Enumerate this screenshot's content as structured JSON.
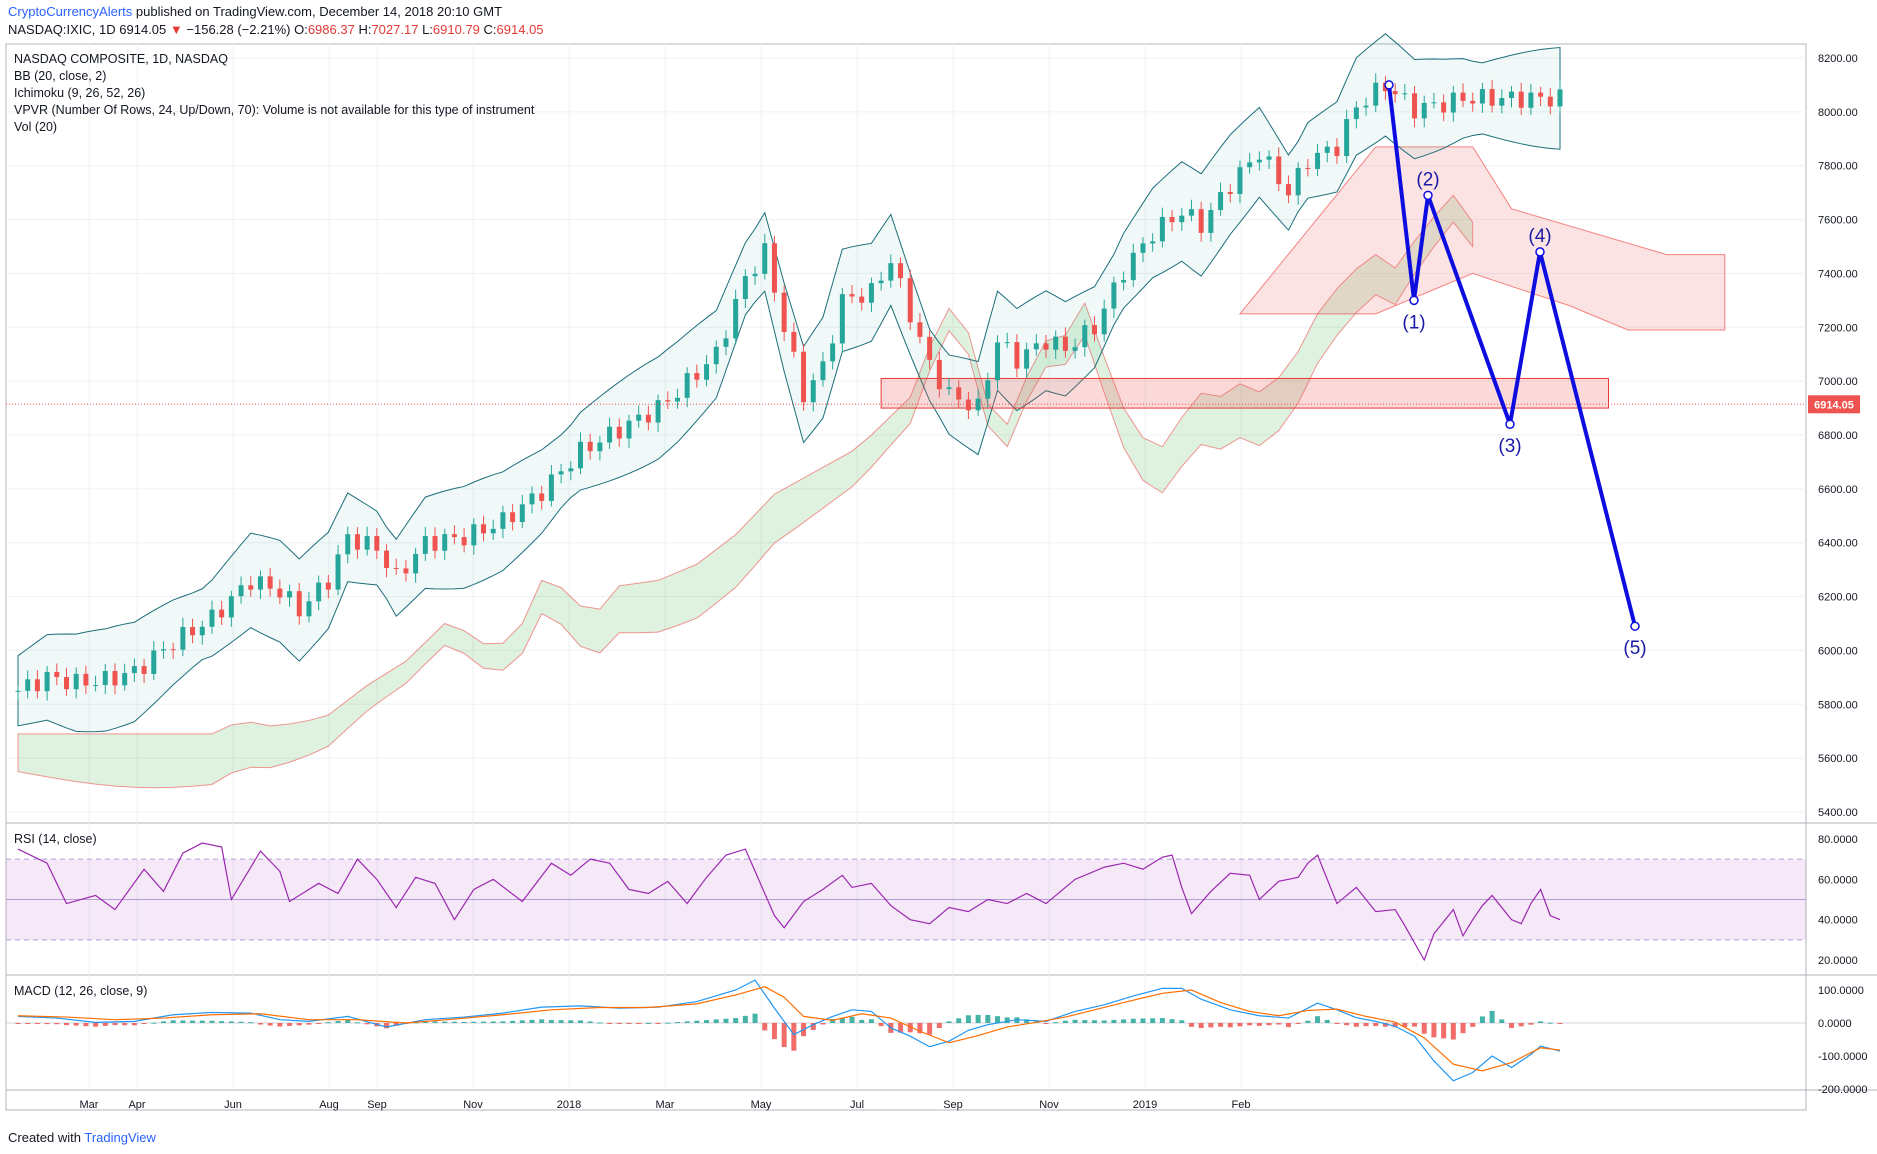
{
  "header": {
    "publisher": "CryptoCurrencyAlerts",
    "published_text": "published on TradingView.com, December 14, 2018 20:10 GMT",
    "symbol": "NASDAQ:IXIC, 1D",
    "last": "6914.05",
    "change_arrow": "▼",
    "change": "−156.28 (−2.21%)",
    "open_label": "O:",
    "open": "6986.37",
    "high_label": "H:",
    "high": "7027.17",
    "low_label": "L:",
    "low": "6910.79",
    "close_label": "C:",
    "close": "6914.05"
  },
  "legend": [
    "NASDAQ COMPOSITE, 1D, NASDAQ",
    "BB (20, close, 2)",
    "Ichimoku (9, 26, 52, 26)",
    "VPVR (Number Of Rows, 24, Up/Down, 70): Volume is not available for this type of instrument",
    "Vol (20)"
  ],
  "footer": {
    "created_with": "Created with",
    "brand": "TradingView"
  },
  "colors": {
    "up": "#26a69a",
    "down": "#ef5350",
    "wave": "#0d0de0",
    "rsi": "#9c27b0",
    "macd": "#2196f3",
    "signal": "#ff6d00",
    "price_tag": "#ef5350"
  },
  "chart_data": [
    {
      "type": "candlestick",
      "title": "NASDAQ COMPOSITE, 1D, NASDAQ",
      "ylim": [
        5400,
        8200
      ],
      "yticks": [
        "5400.00",
        "5600.00",
        "5800.00",
        "6000.00",
        "6200.00",
        "6400.00",
        "6600.00",
        "6800.00",
        "7000.00",
        "7200.00",
        "7400.00",
        "7600.00",
        "7800.00",
        "8000.00",
        "8200.00"
      ],
      "x_ticks": [
        "Mar",
        "Apr",
        "Jun",
        "Aug",
        "Sep",
        "Nov",
        "2018",
        "Mar",
        "May",
        "Jul",
        "Sep",
        "Nov",
        "2019",
        "Feb"
      ],
      "last_price_label": "6914.05",
      "price_path": [
        [
          0,
          5850
        ],
        [
          3,
          5900
        ],
        [
          6,
          5880
        ],
        [
          9,
          5890
        ],
        [
          12,
          5920
        ],
        [
          16,
          6030
        ],
        [
          20,
          6120
        ],
        [
          24,
          6260
        ],
        [
          27,
          6220
        ],
        [
          29,
          6150
        ],
        [
          32,
          6260
        ],
        [
          34,
          6420
        ],
        [
          37,
          6380
        ],
        [
          39,
          6270
        ],
        [
          42,
          6400
        ],
        [
          46,
          6420
        ],
        [
          50,
          6480
        ],
        [
          54,
          6590
        ],
        [
          58,
          6740
        ],
        [
          62,
          6820
        ],
        [
          66,
          6900
        ],
        [
          68,
          6960
        ],
        [
          72,
          7100
        ],
        [
          75,
          7380
        ],
        [
          77,
          7480
        ],
        [
          79,
          7200
        ],
        [
          81,
          6950
        ],
        [
          83,
          7050
        ],
        [
          85,
          7300
        ],
        [
          88,
          7330
        ],
        [
          90,
          7450
        ],
        [
          92,
          7250
        ],
        [
          94,
          7060
        ],
        [
          96,
          6950
        ],
        [
          99,
          6900
        ],
        [
          101,
          7150
        ],
        [
          103,
          7080
        ],
        [
          106,
          7150
        ],
        [
          108,
          7120
        ],
        [
          111,
          7200
        ],
        [
          114,
          7410
        ],
        [
          117,
          7550
        ],
        [
          120,
          7630
        ],
        [
          122,
          7580
        ],
        [
          125,
          7730
        ],
        [
          128,
          7850
        ],
        [
          131,
          7700
        ],
        [
          133,
          7820
        ],
        [
          136,
          7870
        ],
        [
          138,
          8020
        ],
        [
          141,
          8100
        ],
        [
          144,
          8010
        ],
        [
          147,
          8030
        ],
        [
          149,
          8050
        ]
      ],
      "resistance_zone": [
        6900,
        7010
      ],
      "elliott_waves": [
        {
          "label": "(1)",
          "value": 7300
        },
        {
          "label": "(2)",
          "value": 7690
        },
        {
          "label": "(3)",
          "value": 6840
        },
        {
          "label": "(4)",
          "value": 7480
        },
        {
          "label": "(5)",
          "value": 6090
        }
      ],
      "wave_start": 8100
    },
    {
      "type": "line",
      "title": "RSI (14, close)",
      "ylim": [
        15,
        85
      ],
      "yticks": [
        "20.0000",
        "40.0000",
        "60.0000",
        "80.0000"
      ],
      "band": [
        30,
        70
      ],
      "path": [
        [
          0,
          75
        ],
        [
          3,
          68
        ],
        [
          5,
          48
        ],
        [
          8,
          52
        ],
        [
          10,
          45
        ],
        [
          13,
          65
        ],
        [
          15,
          54
        ],
        [
          17,
          73
        ],
        [
          19,
          78
        ],
        [
          21,
          76
        ],
        [
          22,
          50
        ],
        [
          25,
          74
        ],
        [
          27,
          64
        ],
        [
          28,
          49
        ],
        [
          31,
          58
        ],
        [
          33,
          53
        ],
        [
          35,
          70
        ],
        [
          37,
          60
        ],
        [
          39,
          46
        ],
        [
          41,
          61
        ],
        [
          43,
          58
        ],
        [
          45,
          40
        ],
        [
          47,
          55
        ],
        [
          49,
          60
        ],
        [
          52,
          49
        ],
        [
          55,
          68
        ],
        [
          57,
          62
        ],
        [
          59,
          70
        ],
        [
          61,
          68
        ],
        [
          63,
          55
        ],
        [
          65,
          53
        ],
        [
          67,
          59
        ],
        [
          69,
          48
        ],
        [
          71,
          61
        ],
        [
          73,
          72
        ],
        [
          75,
          75
        ],
        [
          76,
          64
        ],
        [
          78,
          42
        ],
        [
          79,
          36
        ],
        [
          81,
          49
        ],
        [
          83,
          55
        ],
        [
          85,
          62
        ],
        [
          86,
          56
        ],
        [
          88,
          58
        ],
        [
          90,
          47
        ],
        [
          92,
          40
        ],
        [
          94,
          38
        ],
        [
          96,
          46
        ],
        [
          98,
          44
        ],
        [
          100,
          50
        ],
        [
          102,
          48
        ],
        [
          104,
          53
        ],
        [
          106,
          48
        ],
        [
          109,
          60
        ],
        [
          112,
          66
        ],
        [
          114,
          68
        ],
        [
          116,
          65
        ],
        [
          118,
          71
        ],
        [
          119,
          72
        ],
        [
          120,
          56
        ],
        [
          121,
          43
        ],
        [
          123,
          54
        ],
        [
          125,
          63
        ],
        [
          127,
          62
        ],
        [
          128,
          50
        ],
        [
          130,
          59
        ],
        [
          132,
          61
        ],
        [
          133,
          68
        ],
        [
          134,
          72
        ],
        [
          136,
          48
        ],
        [
          138,
          56
        ],
        [
          140,
          44
        ],
        [
          142,
          45
        ],
        [
          143,
          37
        ],
        [
          145,
          20
        ],
        [
          146,
          33
        ],
        [
          148,
          45
        ],
        [
          149,
          32
        ],
        [
          150,
          40
        ],
        [
          151,
          47
        ],
        [
          152,
          52
        ],
        [
          154,
          40
        ],
        [
          155,
          38
        ],
        [
          156,
          48
        ],
        [
          157,
          55
        ],
        [
          158,
          42
        ],
        [
          159,
          40
        ]
      ]
    },
    {
      "type": "line",
      "title": "MACD (12, 26, close, 9)",
      "ylim": [
        -200,
        100
      ],
      "yticks": [
        "100.0000",
        "0.0000",
        "-100.0000",
        "-200.0000"
      ],
      "macd_path": [
        [
          0,
          20
        ],
        [
          4,
          15
        ],
        [
          8,
          2
        ],
        [
          12,
          5
        ],
        [
          16,
          25
        ],
        [
          20,
          32
        ],
        [
          24,
          30
        ],
        [
          27,
          10
        ],
        [
          30,
          5
        ],
        [
          34,
          20
        ],
        [
          38,
          -12
        ],
        [
          42,
          10
        ],
        [
          46,
          18
        ],
        [
          50,
          30
        ],
        [
          54,
          48
        ],
        [
          58,
          52
        ],
        [
          62,
          45
        ],
        [
          66,
          48
        ],
        [
          70,
          65
        ],
        [
          74,
          100
        ],
        [
          76,
          130
        ],
        [
          78,
          45
        ],
        [
          80,
          -35
        ],
        [
          82,
          -5
        ],
        [
          84,
          20
        ],
        [
          86,
          40
        ],
        [
          88,
          35
        ],
        [
          90,
          -15
        ],
        [
          92,
          -40
        ],
        [
          94,
          -72
        ],
        [
          96,
          -55
        ],
        [
          98,
          -22
        ],
        [
          100,
          -5
        ],
        [
          103,
          10
        ],
        [
          106,
          5
        ],
        [
          109,
          35
        ],
        [
          112,
          55
        ],
        [
          115,
          82
        ],
        [
          118,
          105
        ],
        [
          120,
          105
        ],
        [
          122,
          72
        ],
        [
          125,
          40
        ],
        [
          128,
          22
        ],
        [
          131,
          15
        ],
        [
          134,
          60
        ],
        [
          136,
          40
        ],
        [
          138,
          16
        ],
        [
          140,
          5
        ],
        [
          142,
          -10
        ],
        [
          144,
          -40
        ],
        [
          146,
          -115
        ],
        [
          148,
          -175
        ],
        [
          150,
          -150
        ],
        [
          152,
          -100
        ],
        [
          154,
          -135
        ],
        [
          156,
          -95
        ],
        [
          157,
          -70
        ],
        [
          159,
          -85
        ]
      ],
      "signal_path": [
        [
          0,
          22
        ],
        [
          5,
          18
        ],
        [
          10,
          10
        ],
        [
          15,
          15
        ],
        [
          20,
          25
        ],
        [
          25,
          28
        ],
        [
          30,
          10
        ],
        [
          35,
          10
        ],
        [
          40,
          0
        ],
        [
          45,
          12
        ],
        [
          50,
          25
        ],
        [
          55,
          40
        ],
        [
          60,
          47
        ],
        [
          65,
          47
        ],
        [
          70,
          58
        ],
        [
          74,
          85
        ],
        [
          77,
          110
        ],
        [
          79,
          78
        ],
        [
          81,
          20
        ],
        [
          84,
          8
        ],
        [
          87,
          28
        ],
        [
          90,
          15
        ],
        [
          93,
          -25
        ],
        [
          96,
          -60
        ],
        [
          99,
          -38
        ],
        [
          102,
          -12
        ],
        [
          105,
          2
        ],
        [
          108,
          18
        ],
        [
          111,
          40
        ],
        [
          114,
          62
        ],
        [
          118,
          90
        ],
        [
          121,
          100
        ],
        [
          124,
          62
        ],
        [
          127,
          35
        ],
        [
          130,
          22
        ],
        [
          133,
          38
        ],
        [
          136,
          42
        ],
        [
          139,
          20
        ],
        [
          142,
          3
        ],
        [
          145,
          -45
        ],
        [
          148,
          -125
        ],
        [
          151,
          -145
        ],
        [
          154,
          -120
        ],
        [
          156,
          -90
        ],
        [
          157,
          -75
        ],
        [
          159,
          -82
        ]
      ]
    }
  ]
}
